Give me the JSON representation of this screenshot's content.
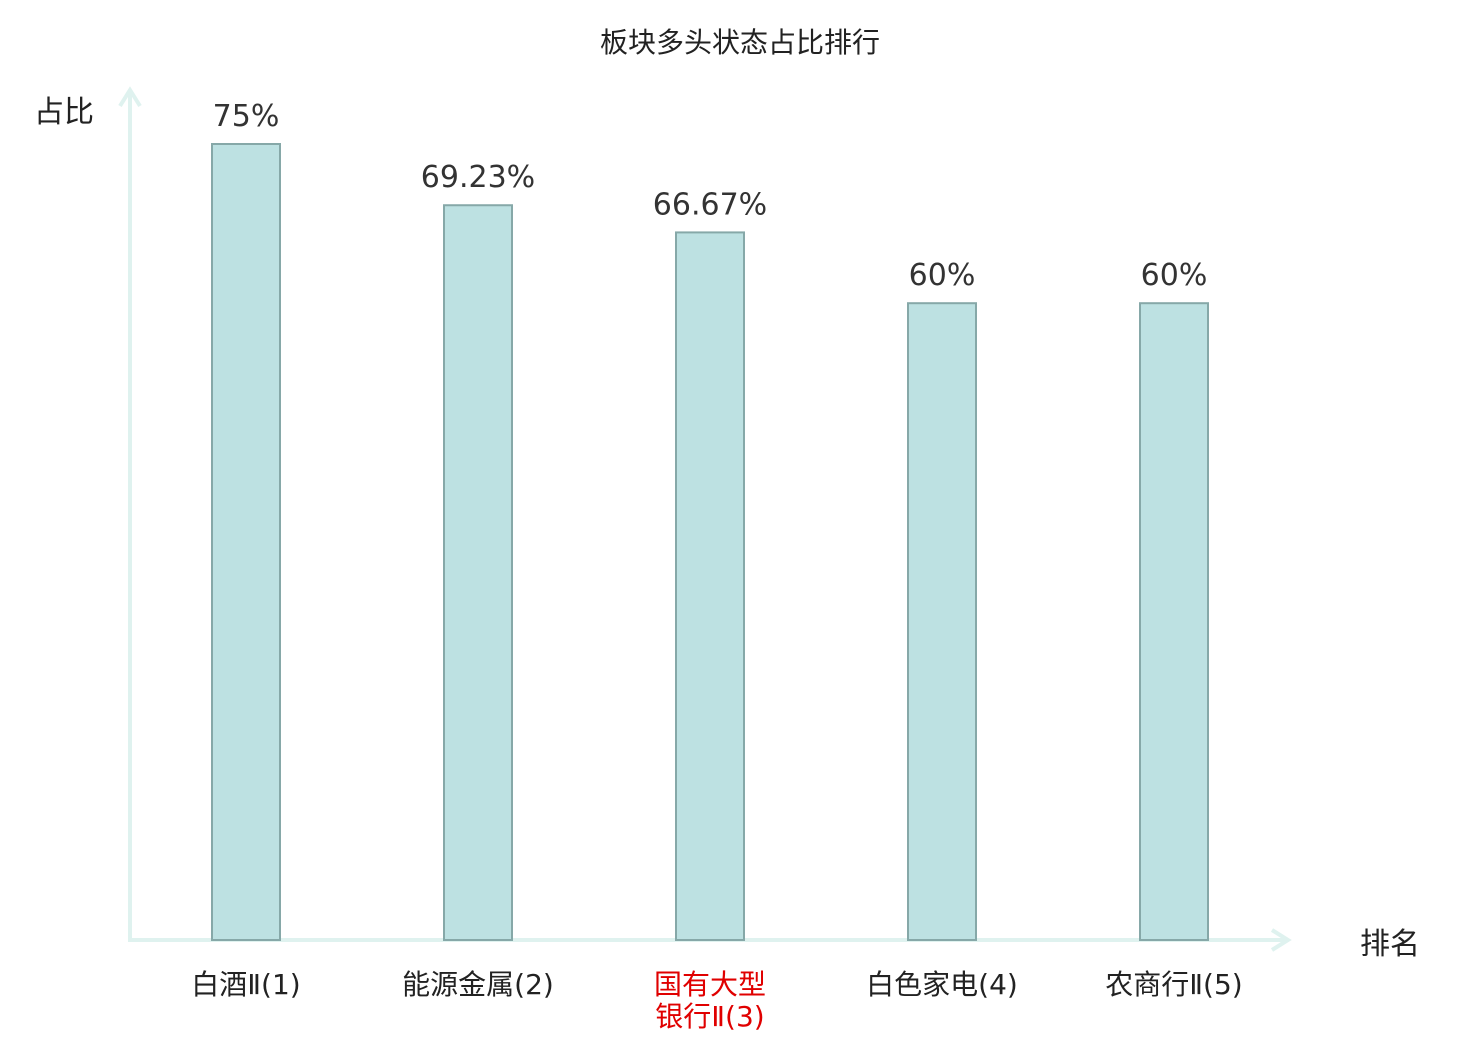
{
  "chart_data": {
    "type": "bar",
    "title": "板块多头状态占比排行",
    "ylabel": "占比",
    "xlabel": "排名",
    "categories": [
      "白酒Ⅱ(1)",
      "能源金属(2)",
      "国有大型银行Ⅱ(3)",
      "白色家电(4)",
      "农商行Ⅱ(5)"
    ],
    "category_lines": [
      [
        "白酒Ⅱ(1)"
      ],
      [
        "能源金属(2)"
      ],
      [
        "国有大型",
        "银行Ⅱ(3)"
      ],
      [
        "白色家电(4)"
      ],
      [
        "农商行Ⅱ(5)"
      ]
    ],
    "values": [
      75,
      69.23,
      66.67,
      60,
      60
    ],
    "value_labels": [
      "75%",
      "69.23%",
      "66.67%",
      "60%",
      "60%"
    ],
    "unit": "%",
    "ylim": [
      0,
      75
    ],
    "highlight_index": 2,
    "grid": false,
    "colors": {
      "bar_fill": "#bde1e2",
      "bar_stroke": "#86a8a8",
      "axis": "#dff2ef",
      "highlight_text": "#e00000",
      "text": "#222222"
    }
  }
}
